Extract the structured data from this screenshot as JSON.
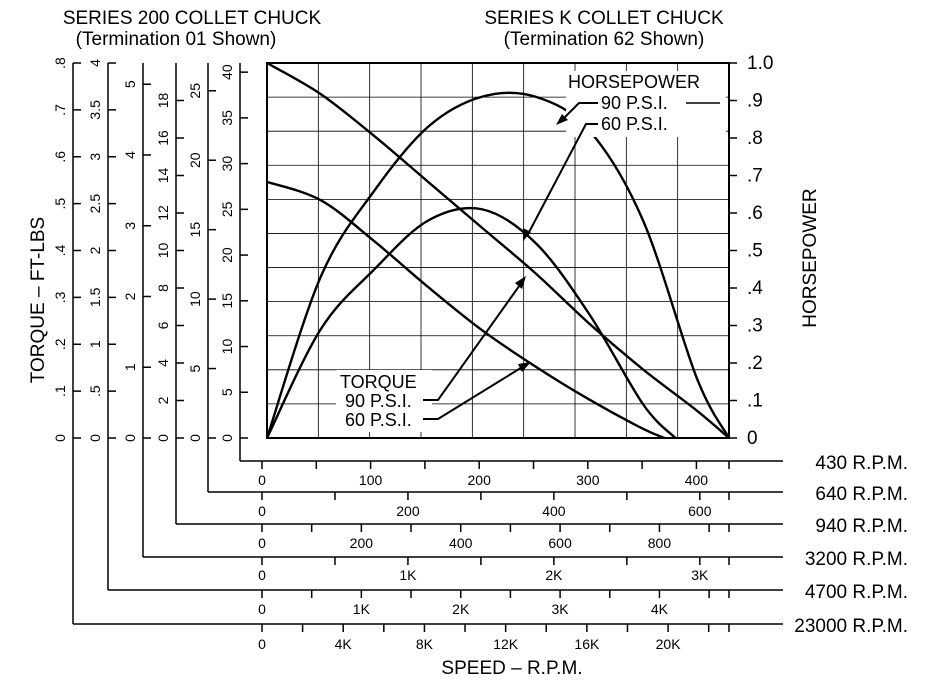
{
  "headings": {
    "series200": "SERIES 200 COLLET CHUCK",
    "series200_sub": "(Termination 01 Shown)",
    "seriesK": "SERIES K COLLET CHUCK",
    "seriesK_sub": "(Termination 62 Shown)"
  },
  "chart_data": {
    "type": "line",
    "xlabel": "SPEED – R.P.M.",
    "ylabel_left": "TORQUE – FT-LBS",
    "ylabel_right": "HORSEPOWER",
    "grid": true,
    "x_scales": [
      {
        "label": "430 R.P.M.",
        "max": 430,
        "ticks": [
          "0",
          "100",
          "200",
          "300",
          "400"
        ],
        "tick_values": [
          0,
          100,
          200,
          300,
          400
        ]
      },
      {
        "label": "640 R.P.M.",
        "max": 640,
        "ticks": [
          "0",
          "200",
          "400",
          "600"
        ],
        "tick_values": [
          0,
          200,
          400,
          600
        ]
      },
      {
        "label": "940 R.P.M.",
        "max": 940,
        "ticks": [
          "0",
          "200",
          "400",
          "600",
          "800"
        ],
        "tick_values": [
          0,
          200,
          400,
          600,
          800
        ]
      },
      {
        "label": "3200 R.P.M.",
        "max": 3200,
        "ticks": [
          "0",
          "1K",
          "2K",
          "3K"
        ],
        "tick_values": [
          0,
          1000,
          2000,
          3000
        ]
      },
      {
        "label": "4700 R.P.M.",
        "max": 4700,
        "ticks": [
          "0",
          "1K",
          "2K",
          "3K",
          "4K"
        ],
        "tick_values": [
          0,
          1000,
          2000,
          3000,
          4000
        ]
      },
      {
        "label": "23000 R.P.M.",
        "max": 23000,
        "ticks": [
          "0",
          "4K",
          "8K",
          "12K",
          "16K",
          "20K"
        ],
        "tick_values": [
          0,
          4000,
          8000,
          12000,
          16000,
          20000
        ]
      }
    ],
    "torque_scales": [
      {
        "max": 0.8,
        "ticks": [
          "0",
          ".1",
          ".2",
          ".3",
          ".4",
          ".5",
          ".6",
          ".7",
          ".8"
        ]
      },
      {
        "max": 4,
        "ticks": [
          "0",
          ".5",
          "1",
          "1.5",
          "2",
          "2.5",
          "3",
          "3.5",
          "4"
        ]
      },
      {
        "max": 5.3,
        "ticks": [
          "0",
          "1",
          "2",
          "3",
          "4",
          "5"
        ]
      },
      {
        "max": 20,
        "ticks": [
          "0",
          "2",
          "4",
          "6",
          "8",
          "10",
          "12",
          "14",
          "16",
          "18"
        ]
      },
      {
        "max": 27,
        "ticks": [
          "0",
          "5",
          "10",
          "15",
          "20",
          "25"
        ]
      },
      {
        "max": 41,
        "ticks": [
          "0",
          "5",
          "10",
          "15",
          "20",
          "25",
          "30",
          "35",
          "40"
        ]
      }
    ],
    "hp_axis": {
      "max": 1.0,
      "ticks": [
        "0",
        ".1",
        ".2",
        ".3",
        ".4",
        ".5",
        ".6",
        ".7",
        ".8",
        ".9",
        "1.0"
      ]
    },
    "series": [
      {
        "name": "TORQUE 90 P.S.I.",
        "axis": "torque",
        "x": [
          0,
          50,
          100,
          150,
          200,
          250,
          300,
          350,
          400,
          430
        ],
        "y": [
          41,
          37.6,
          33,
          28,
          23,
          18,
          12.5,
          7.5,
          3,
          0
        ]
      },
      {
        "name": "TORQUE 60 P.S.I.",
        "axis": "torque",
        "x": [
          0,
          50,
          100,
          150,
          200,
          250,
          300,
          350,
          370
        ],
        "y": [
          28,
          26,
          21.5,
          16.5,
          11.8,
          7.8,
          4.2,
          1,
          0
        ]
      },
      {
        "name": "HORSEPOWER 90 P.S.I.",
        "axis": "hp",
        "x": [
          0,
          50,
          100,
          150,
          200,
          250,
          300,
          350,
          400,
          430
        ],
        "y": [
          0,
          0.43,
          0.66,
          0.83,
          0.91,
          0.91,
          0.82,
          0.58,
          0.16,
          0
        ]
      },
      {
        "name": "HORSEPOWER 60 P.S.I.",
        "axis": "hp",
        "x": [
          0,
          50,
          100,
          150,
          200,
          250,
          300,
          350,
          380
        ],
        "y": [
          0,
          0.29,
          0.45,
          0.58,
          0.61,
          0.52,
          0.33,
          0.09,
          0
        ]
      }
    ],
    "annotations": {
      "hp_title": "HORSEPOWER",
      "hp_90": "90 P.S.I.",
      "hp_60": "60 P.S.I.",
      "torque_title": "TORQUE",
      "torque_90": "90 P.S.I.",
      "torque_60": "60 P.S.I."
    }
  }
}
